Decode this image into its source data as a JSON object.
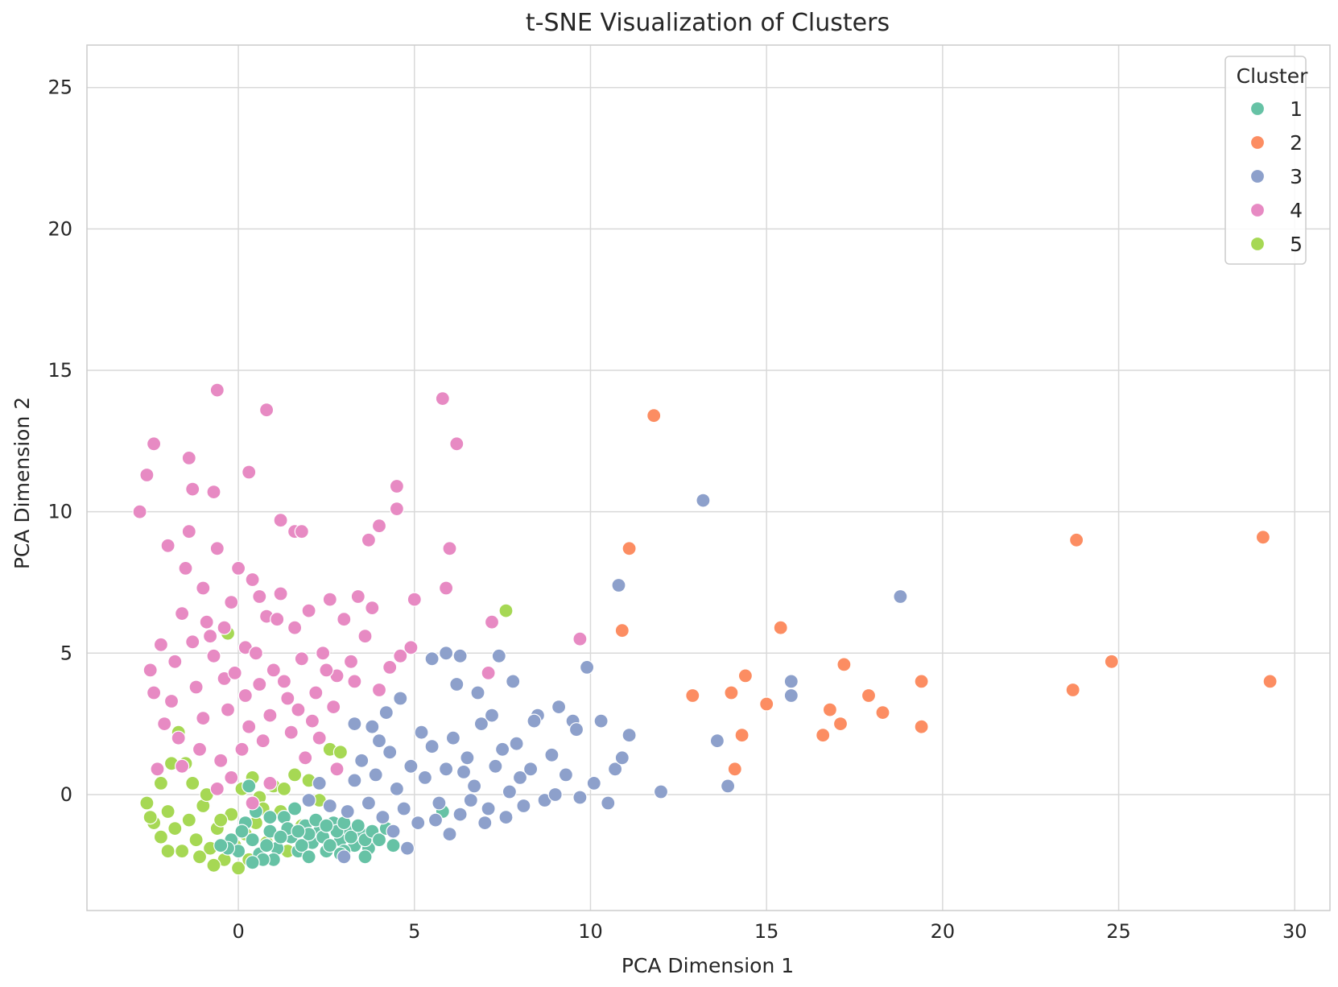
{
  "chart_data": {
    "type": "scatter",
    "title": "t-SNE Visualization of Clusters",
    "xlabel": "PCA Dimension 1",
    "ylabel": "PCA Dimension 2",
    "xlim": [
      -4.3,
      31
    ],
    "ylim": [
      -4.1,
      26.5
    ],
    "xticks": [
      0,
      5,
      10,
      15,
      20,
      25,
      30
    ],
    "yticks": [
      0,
      5,
      10,
      15,
      20,
      25
    ],
    "grid": true,
    "legend": {
      "title": "Cluster",
      "placement": "top-right"
    },
    "series": [
      {
        "name": "1",
        "color": "#66c2a5",
        "points": [
          [
            0.2,
            -1.0
          ],
          [
            0.4,
            -1.6
          ],
          [
            0.6,
            -2.1
          ],
          [
            0.9,
            -1.3
          ],
          [
            1.1,
            -1.9
          ],
          [
            1.3,
            -0.8
          ],
          [
            1.5,
            -1.5
          ],
          [
            1.7,
            -2.0
          ],
          [
            1.9,
            -1.1
          ],
          [
            2.1,
            -1.7
          ],
          [
            2.3,
            -1.3
          ],
          [
            2.5,
            -2.0
          ],
          [
            2.7,
            -1.0
          ],
          [
            2.9,
            -1.6
          ],
          [
            3.1,
            -1.2
          ],
          [
            3.3,
            -1.8
          ],
          [
            3.5,
            -1.4
          ],
          [
            3.7,
            -1.9
          ],
          [
            -0.2,
            -1.6
          ],
          [
            0.0,
            -2.0
          ],
          [
            0.5,
            -0.6
          ],
          [
            0.8,
            -1.8
          ],
          [
            1.0,
            -2.3
          ],
          [
            1.4,
            -1.2
          ],
          [
            1.6,
            -0.5
          ],
          [
            1.8,
            -1.8
          ],
          [
            2.0,
            -2.2
          ],
          [
            2.2,
            -0.9
          ],
          [
            2.4,
            -1.5
          ],
          [
            2.6,
            -1.8
          ],
          [
            2.8,
            -1.3
          ],
          [
            3.0,
            -2.0
          ],
          [
            3.2,
            -1.5
          ],
          [
            3.4,
            -1.1
          ],
          [
            3.6,
            -1.6
          ],
          [
            3.8,
            -1.3
          ],
          [
            0.3,
            0.3
          ],
          [
            0.1,
            -1.3
          ],
          [
            -0.3,
            -1.9
          ],
          [
            4.0,
            -1.6
          ],
          [
            4.2,
            -1.2
          ],
          [
            0.7,
            -2.3
          ],
          [
            1.2,
            -1.5
          ],
          [
            2.0,
            -1.4
          ],
          [
            2.5,
            -1.1
          ],
          [
            3.0,
            -1.0
          ],
          [
            5.8,
            -0.6
          ],
          [
            4.4,
            -1.8
          ],
          [
            0.9,
            -0.8
          ],
          [
            1.7,
            -1.3
          ],
          [
            2.9,
            -2.1
          ],
          [
            3.6,
            -2.2
          ],
          [
            0.4,
            -2.4
          ],
          [
            -0.5,
            -1.8
          ]
        ]
      },
      {
        "name": "2",
        "color": "#fc8d62",
        "points": [
          [
            11.8,
            13.4
          ],
          [
            11.1,
            8.7
          ],
          [
            10.9,
            5.8
          ],
          [
            12.9,
            3.5
          ],
          [
            14.0,
            3.6
          ],
          [
            14.4,
            4.2
          ],
          [
            14.3,
            2.1
          ],
          [
            14.1,
            0.9
          ],
          [
            15.0,
            3.2
          ],
          [
            15.4,
            5.9
          ],
          [
            16.6,
            2.1
          ],
          [
            16.8,
            3.0
          ],
          [
            17.1,
            2.5
          ],
          [
            17.2,
            4.6
          ],
          [
            17.9,
            3.5
          ],
          [
            18.3,
            2.9
          ],
          [
            19.4,
            4.0
          ],
          [
            19.4,
            2.4
          ],
          [
            23.8,
            9.0
          ],
          [
            23.7,
            3.7
          ],
          [
            24.8,
            4.7
          ],
          [
            29.1,
            9.1
          ],
          [
            29.3,
            4.0
          ]
        ]
      },
      {
        "name": "3",
        "color": "#8da0cb",
        "points": [
          [
            2.0,
            -0.2
          ],
          [
            2.3,
            0.4
          ],
          [
            2.6,
            -0.4
          ],
          [
            2.8,
            0.9
          ],
          [
            3.1,
            -0.6
          ],
          [
            3.3,
            0.5
          ],
          [
            3.5,
            1.2
          ],
          [
            3.7,
            -0.3
          ],
          [
            3.9,
            0.7
          ],
          [
            4.1,
            -0.8
          ],
          [
            4.3,
            1.5
          ],
          [
            4.5,
            0.2
          ],
          [
            4.7,
            -0.5
          ],
          [
            4.9,
            1.0
          ],
          [
            5.1,
            -1.0
          ],
          [
            5.3,
            0.6
          ],
          [
            5.5,
            1.7
          ],
          [
            5.7,
            -0.3
          ],
          [
            5.9,
            0.9
          ],
          [
            6.1,
            2.0
          ],
          [
            6.3,
            -0.7
          ],
          [
            6.5,
            1.3
          ],
          [
            6.7,
            0.3
          ],
          [
            6.9,
            2.5
          ],
          [
            7.1,
            -0.5
          ],
          [
            7.3,
            1.0
          ],
          [
            7.5,
            1.6
          ],
          [
            7.7,
            0.1
          ],
          [
            7.9,
            1.8
          ],
          [
            8.1,
            -0.4
          ],
          [
            8.3,
            0.9
          ],
          [
            8.5,
            2.8
          ],
          [
            8.7,
            -0.2
          ],
          [
            8.9,
            1.4
          ],
          [
            9.1,
            3.1
          ],
          [
            9.3,
            0.7
          ],
          [
            9.5,
            2.6
          ],
          [
            9.7,
            -0.1
          ],
          [
            9.9,
            4.5
          ],
          [
            10.1,
            0.4
          ],
          [
            10.3,
            2.6
          ],
          [
            10.5,
            -0.3
          ],
          [
            10.7,
            0.9
          ],
          [
            10.9,
            1.3
          ],
          [
            11.1,
            2.1
          ],
          [
            10.8,
            7.4
          ],
          [
            12.0,
            0.1
          ],
          [
            13.2,
            10.4
          ],
          [
            13.6,
            1.9
          ],
          [
            13.9,
            0.3
          ],
          [
            15.7,
            4.0
          ],
          [
            15.7,
            3.5
          ],
          [
            18.8,
            7.0
          ],
          [
            5.5,
            4.8
          ],
          [
            5.9,
            5.0
          ],
          [
            6.3,
            4.9
          ],
          [
            7.4,
            4.9
          ],
          [
            7.8,
            4.0
          ],
          [
            6.2,
            3.9
          ],
          [
            4.6,
            3.4
          ],
          [
            4.2,
            2.9
          ],
          [
            3.8,
            2.4
          ],
          [
            3.3,
            2.5
          ],
          [
            6.8,
            3.6
          ],
          [
            7.2,
            2.8
          ],
          [
            8.4,
            2.6
          ],
          [
            9.6,
            2.3
          ],
          [
            4.8,
            -1.9
          ],
          [
            3.0,
            -2.2
          ],
          [
            6.0,
            -1.4
          ],
          [
            7.0,
            -1.0
          ],
          [
            4.4,
            -1.3
          ],
          [
            5.6,
            -0.9
          ],
          [
            6.6,
            -0.2
          ],
          [
            8.0,
            0.6
          ],
          [
            9.0,
            0.0
          ],
          [
            7.6,
            -0.8
          ],
          [
            6.4,
            0.8
          ],
          [
            5.2,
            2.2
          ],
          [
            4.0,
            1.9
          ]
        ]
      },
      {
        "name": "4",
        "color": "#e78ac3",
        "points": [
          [
            -2.8,
            10.0
          ],
          [
            -2.6,
            11.3
          ],
          [
            -2.4,
            12.4
          ],
          [
            -1.4,
            11.9
          ],
          [
            -1.3,
            10.8
          ],
          [
            -0.7,
            10.7
          ],
          [
            -0.6,
            14.3
          ],
          [
            0.3,
            11.4
          ],
          [
            0.8,
            13.6
          ],
          [
            5.8,
            14.0
          ],
          [
            6.2,
            12.4
          ],
          [
            4.5,
            10.9
          ],
          [
            4.5,
            10.1
          ],
          [
            1.2,
            9.7
          ],
          [
            1.6,
            9.3
          ],
          [
            1.8,
            9.3
          ],
          [
            3.7,
            9.0
          ],
          [
            4.0,
            9.5
          ],
          [
            6.0,
            8.7
          ],
          [
            5.9,
            7.3
          ],
          [
            7.2,
            6.1
          ],
          [
            9.7,
            5.5
          ],
          [
            7.1,
            4.3
          ],
          [
            5.0,
            6.9
          ],
          [
            4.9,
            5.2
          ],
          [
            4.6,
            4.9
          ],
          [
            4.3,
            4.5
          ],
          [
            4.0,
            3.7
          ],
          [
            3.8,
            6.6
          ],
          [
            3.6,
            5.6
          ],
          [
            3.4,
            7.0
          ],
          [
            3.2,
            4.7
          ],
          [
            3.0,
            6.2
          ],
          [
            2.8,
            4.2
          ],
          [
            2.6,
            6.9
          ],
          [
            2.4,
            5.0
          ],
          [
            2.2,
            3.6
          ],
          [
            2.0,
            6.5
          ],
          [
            1.8,
            4.8
          ],
          [
            1.6,
            5.9
          ],
          [
            1.4,
            3.4
          ],
          [
            1.2,
            7.1
          ],
          [
            1.0,
            4.4
          ],
          [
            0.8,
            6.3
          ],
          [
            0.6,
            3.9
          ],
          [
            0.4,
            7.6
          ],
          [
            0.2,
            5.2
          ],
          [
            0.0,
            8.0
          ],
          [
            -0.2,
            6.8
          ],
          [
            -0.4,
            4.1
          ],
          [
            -0.6,
            8.7
          ],
          [
            -0.8,
            5.6
          ],
          [
            -1.0,
            7.3
          ],
          [
            -1.2,
            3.8
          ],
          [
            -1.4,
            9.3
          ],
          [
            -1.6,
            6.4
          ],
          [
            -1.8,
            4.7
          ],
          [
            -2.0,
            8.8
          ],
          [
            -2.2,
            5.3
          ],
          [
            -2.4,
            3.6
          ],
          [
            -1.5,
            8.0
          ],
          [
            -0.9,
            6.1
          ],
          [
            -0.3,
            3.0
          ],
          [
            0.3,
            2.4
          ],
          [
            0.9,
            2.8
          ],
          [
            1.5,
            2.2
          ],
          [
            2.1,
            2.6
          ],
          [
            2.7,
            3.1
          ],
          [
            3.3,
            4.0
          ],
          [
            -2.1,
            2.5
          ],
          [
            -1.7,
            2.0
          ],
          [
            -1.1,
            1.6
          ],
          [
            -0.5,
            1.2
          ],
          [
            0.1,
            1.6
          ],
          [
            0.7,
            1.9
          ],
          [
            -1.9,
            3.3
          ],
          [
            -0.7,
            4.9
          ],
          [
            0.5,
            5.0
          ],
          [
            1.1,
            6.2
          ],
          [
            1.7,
            3.0
          ],
          [
            2.3,
            2.0
          ],
          [
            -2.5,
            4.4
          ],
          [
            -1.3,
            5.4
          ],
          [
            -0.1,
            4.3
          ],
          [
            0.6,
            7.0
          ],
          [
            -0.4,
            5.9
          ],
          [
            1.3,
            4.0
          ],
          [
            2.5,
            4.4
          ],
          [
            -1.6,
            1.0
          ],
          [
            -0.2,
            0.6
          ],
          [
            0.9,
            0.4
          ],
          [
            -2.3,
            0.9
          ],
          [
            -1.0,
            2.7
          ],
          [
            0.2,
            3.5
          ],
          [
            1.9,
            1.3
          ],
          [
            2.8,
            0.9
          ],
          [
            -0.6,
            0.2
          ],
          [
            0.4,
            -0.3
          ]
        ]
      },
      {
        "name": "5",
        "color": "#a6d854",
        "points": [
          [
            -2.6,
            -0.3
          ],
          [
            -2.4,
            -1.0
          ],
          [
            -2.2,
            -1.5
          ],
          [
            -2.0,
            -0.6
          ],
          [
            -1.8,
            -1.2
          ],
          [
            -1.6,
            -2.0
          ],
          [
            -1.4,
            -0.9
          ],
          [
            -1.2,
            -1.6
          ],
          [
            -1.0,
            -0.4
          ],
          [
            -0.8,
            -1.9
          ],
          [
            -0.6,
            -1.2
          ],
          [
            -0.4,
            -2.3
          ],
          [
            -0.2,
            -0.7
          ],
          [
            0.0,
            -2.6
          ],
          [
            0.2,
            -1.4
          ],
          [
            0.4,
            0.6
          ],
          [
            0.6,
            -0.1
          ],
          [
            0.8,
            -1.7
          ],
          [
            1.0,
            0.3
          ],
          [
            1.2,
            -0.6
          ],
          [
            1.4,
            -2.0
          ],
          [
            1.6,
            0.7
          ],
          [
            1.8,
            -1.1
          ],
          [
            2.0,
            0.5
          ],
          [
            -1.7,
            2.2
          ],
          [
            -0.3,
            5.7
          ],
          [
            2.6,
            1.6
          ],
          [
            2.9,
            1.5
          ],
          [
            4.2,
            2.9
          ],
          [
            7.6,
            6.5
          ],
          [
            -2.2,
            0.4
          ],
          [
            -1.5,
            1.1
          ],
          [
            -0.9,
            0.0
          ],
          [
            -0.5,
            -0.9
          ],
          [
            0.1,
            0.2
          ],
          [
            0.7,
            -0.5
          ],
          [
            1.3,
            0.2
          ],
          [
            -2.0,
            -2.0
          ],
          [
            -1.1,
            -2.2
          ],
          [
            -0.1,
            -1.8
          ],
          [
            -1.9,
            1.1
          ],
          [
            -1.3,
            0.4
          ],
          [
            0.5,
            -1.0
          ],
          [
            1.5,
            -1.3
          ],
          [
            2.3,
            -0.2
          ],
          [
            -0.7,
            -2.5
          ],
          [
            0.3,
            -2.3
          ],
          [
            -2.5,
            -0.8
          ]
        ]
      }
    ]
  }
}
